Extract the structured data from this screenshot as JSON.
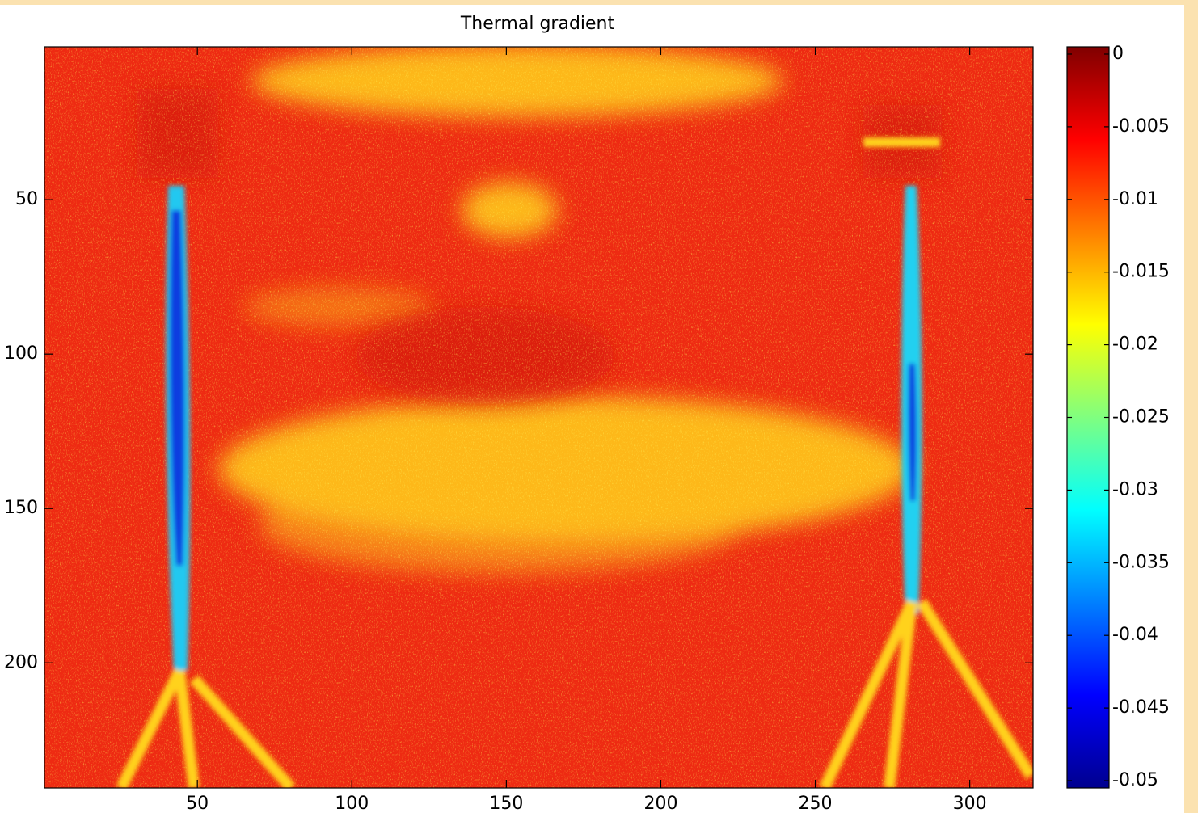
{
  "chart_data": {
    "type": "heatmap",
    "title": "Thermal gradient",
    "xlim": [
      0.5,
      320.5
    ],
    "xticks": [
      50,
      100,
      150,
      200,
      250,
      300
    ],
    "ylim": [
      0.5,
      240.5
    ],
    "yticks": [
      50,
      100,
      150,
      200
    ],
    "y_reversed": true,
    "colorbar": {
      "colormap": "jet",
      "clim": [
        -0.0505,
        0.0005
      ],
      "ticks": [
        0,
        -0.005,
        -0.01,
        -0.015,
        -0.02,
        -0.025,
        -0.03,
        -0.035,
        -0.04,
        -0.045,
        -0.05
      ]
    }
  }
}
